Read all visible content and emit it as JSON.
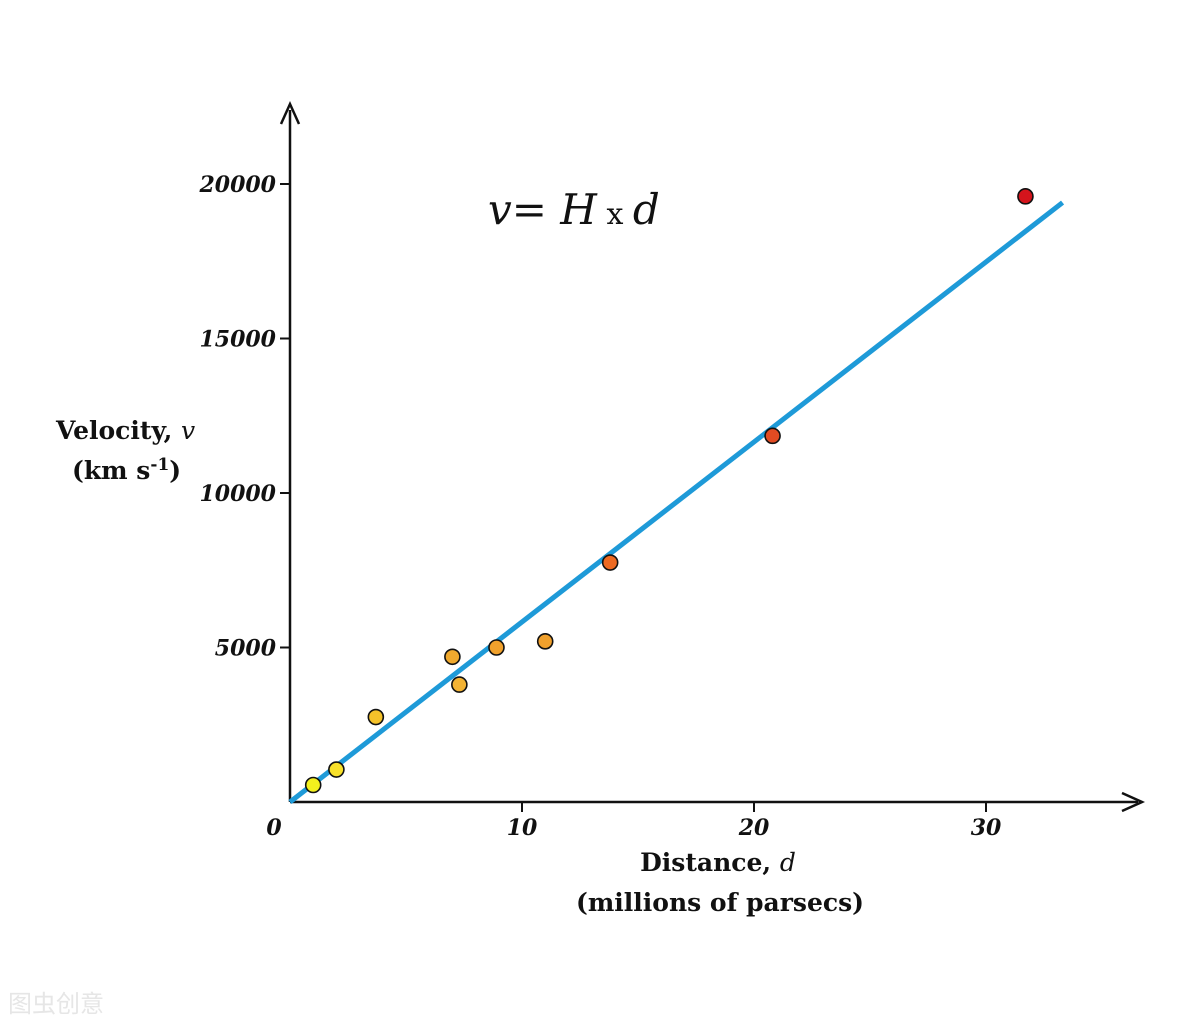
{
  "chart_data": {
    "type": "scatter",
    "x_label_main": "Distance, ",
    "x_label_var": "d",
    "x_label_sub": "(millions of parsecs)",
    "y_label_main": "Velocity, ",
    "y_label_var": "v",
    "y_label_unit_open": "(km s",
    "y_label_unit_sup": "-1",
    "y_label_unit_close": ")",
    "formula_v": "v",
    "formula_eq": "= ",
    "formula_H": "H",
    "formula_x": " x ",
    "formula_d": "d",
    "x_ticks": [
      0,
      10,
      20,
      30
    ],
    "x_tick_labels": [
      "0",
      "10",
      "20",
      "30"
    ],
    "y_ticks": [
      5000,
      10000,
      15000,
      20000
    ],
    "y_tick_labels": [
      "5000",
      "10000",
      "15000",
      "20000"
    ],
    "xlim": [
      0,
      36.5
    ],
    "ylim": [
      0,
      22300
    ],
    "grid": false,
    "points": [
      {
        "x": 1.0,
        "y": 550,
        "color": "#f3f01d"
      },
      {
        "x": 2.0,
        "y": 1050,
        "color": "#f8e12a"
      },
      {
        "x": 3.7,
        "y": 2750,
        "color": "#f5c22a"
      },
      {
        "x": 7.0,
        "y": 4700,
        "color": "#f0a92e"
      },
      {
        "x": 7.3,
        "y": 3800,
        "color": "#f3b334"
      },
      {
        "x": 8.9,
        "y": 5000,
        "color": "#f0a12c"
      },
      {
        "x": 11.0,
        "y": 5200,
        "color": "#f0a02c"
      },
      {
        "x": 13.8,
        "y": 7750,
        "color": "#ee6a22"
      },
      {
        "x": 20.8,
        "y": 11850,
        "color": "#e24b22"
      },
      {
        "x": 31.7,
        "y": 19600,
        "color": "#d4141c"
      }
    ],
    "fit_line": {
      "x": [
        0,
        33.3
      ],
      "y": [
        0,
        19400
      ],
      "color": "#1e9ad8"
    }
  },
  "watermark": "图虫创意"
}
